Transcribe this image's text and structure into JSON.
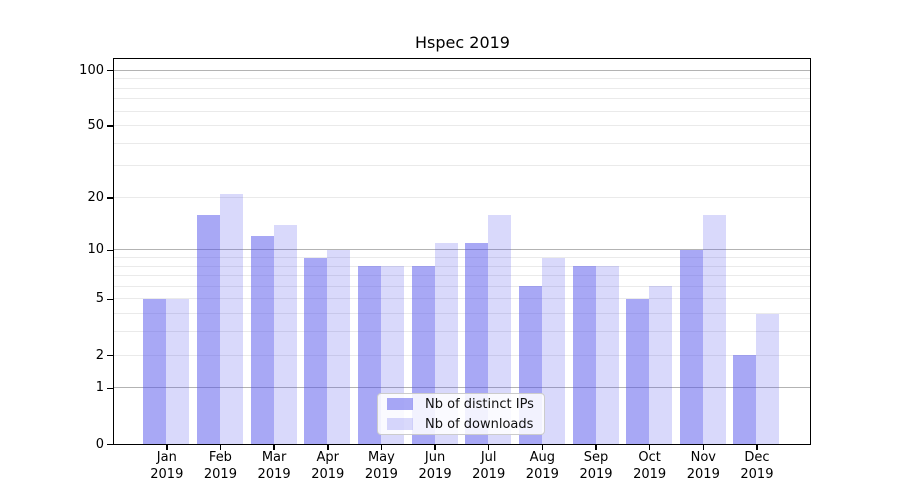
{
  "title": "Hspec 2019",
  "chart_data": {
    "type": "bar",
    "title": "Hspec 2019",
    "x_tick_months": [
      "Jan",
      "Feb",
      "Mar",
      "Apr",
      "May",
      "Jun",
      "Jul",
      "Aug",
      "Sep",
      "Oct",
      "Nov",
      "Dec"
    ],
    "x_tick_year": "2019",
    "categories": [
      "Jan 2019",
      "Feb 2019",
      "Mar 2019",
      "Apr 2019",
      "May 2019",
      "Jun 2019",
      "Jul 2019",
      "Aug 2019",
      "Sep 2019",
      "Oct 2019",
      "Nov 2019",
      "Dec 2019"
    ],
    "series": [
      {
        "name": "Nb of distinct IPs",
        "values": [
          5,
          16,
          12,
          9,
          8,
          8,
          11,
          6,
          8,
          5,
          10,
          2
        ],
        "color": "rgba(81,81,235,0.5)"
      },
      {
        "name": "Nb of downloads",
        "values": [
          5,
          21,
          14,
          10,
          8,
          11,
          16,
          9,
          8,
          6,
          16,
          4
        ],
        "color": "rgba(81,81,235,0.22)"
      }
    ],
    "yscale": "log1p",
    "ylim": [
      0,
      115
    ],
    "yticks": [
      0,
      1,
      2,
      5,
      10,
      20,
      50,
      100
    ],
    "grid": {
      "major_values": [
        1,
        10,
        100
      ],
      "minor_values": [
        2,
        3,
        4,
        5,
        6,
        7,
        8,
        9,
        20,
        30,
        40,
        50,
        60,
        70,
        80,
        90
      ],
      "major_color": "#b3b3b3",
      "minor_color": "#eaeaea"
    },
    "legend_position": "inside lower center",
    "axis_color": "#000000",
    "background_color": "#ffffff"
  }
}
